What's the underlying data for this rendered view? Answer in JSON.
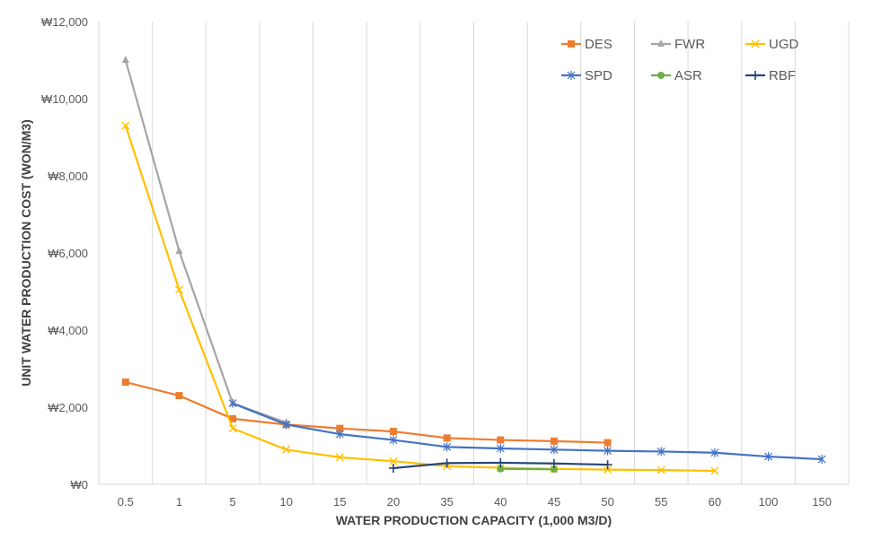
{
  "chart_data": {
    "type": "line",
    "xlabel": "WATER PRODUCTION CAPACITY (1,000 M3/D)",
    "ylabel": "UNIT WATER PRODUCTION COST (WON/M3)",
    "categories": [
      "0.5",
      "1",
      "5",
      "10",
      "15",
      "20",
      "35",
      "40",
      "45",
      "50",
      "55",
      "60",
      "100",
      "150"
    ],
    "y_tick_labels": [
      "₩0",
      "₩2,000",
      "₩4,000",
      "₩6,000",
      "₩8,000",
      "₩10,000",
      "₩12,000"
    ],
    "ylim": [
      0,
      12000
    ],
    "grid": "vertical",
    "legend_position": "top-right",
    "series": [
      {
        "name": "DES",
        "color": "#ED7D31",
        "marker": "square",
        "values": [
          2650,
          2300,
          1700,
          1550,
          1450,
          1370,
          1200,
          1150,
          1120,
          1080,
          null,
          null,
          null,
          null
        ]
      },
      {
        "name": "FWR",
        "color": "#A5A5A5",
        "marker": "triangle",
        "values": [
          11000,
          6050,
          2100,
          1600,
          null,
          null,
          null,
          null,
          null,
          null,
          null,
          null,
          null,
          null
        ]
      },
      {
        "name": "UGD",
        "color": "#FFC000",
        "marker": "x",
        "values": [
          9300,
          5050,
          1450,
          900,
          700,
          600,
          470,
          430,
          400,
          380,
          370,
          350,
          null,
          null
        ]
      },
      {
        "name": "SPD",
        "color": "#4472C4",
        "marker": "star",
        "values": [
          null,
          null,
          2100,
          1550,
          1300,
          1150,
          970,
          930,
          900,
          870,
          850,
          820,
          720,
          650
        ]
      },
      {
        "name": "ASR",
        "color": "#70AD47",
        "marker": "circle",
        "values": [
          null,
          null,
          null,
          null,
          null,
          null,
          null,
          400,
          390,
          null,
          null,
          null,
          null,
          null
        ]
      },
      {
        "name": "RBF",
        "color": "#264478",
        "marker": "plus",
        "values": [
          null,
          null,
          null,
          null,
          null,
          420,
          550,
          560,
          540,
          510,
          null,
          null,
          null,
          null
        ]
      }
    ]
  }
}
